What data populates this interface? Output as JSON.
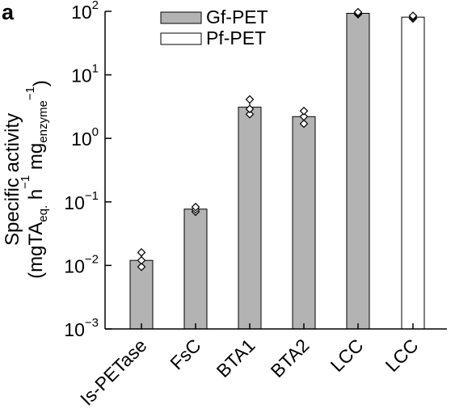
{
  "panel_label": "a",
  "chart_data": {
    "type": "bar",
    "yscale": "log",
    "ylim": [
      0.001,
      100
    ],
    "yticks": [
      {
        "base": "10",
        "exp": "2",
        "value": 100
      },
      {
        "base": "10",
        "exp": "1",
        "value": 10
      },
      {
        "base": "10",
        "exp": "0",
        "value": 1
      },
      {
        "base": "10",
        "exp": "−1",
        "value": 0.1
      },
      {
        "base": "10",
        "exp": "−2",
        "value": 0.01
      },
      {
        "base": "10",
        "exp": "−3",
        "value": 0.001
      }
    ],
    "ylabel": {
      "line1": "Specific activity",
      "line2_parts": [
        {
          "text": "(mgTA",
          "style": "normal"
        },
        {
          "text": "eq.",
          "style": "sub"
        },
        {
          "text": " h",
          "style": "normal"
        },
        {
          "text": "−1",
          "style": "sup"
        },
        {
          "text": " mg",
          "style": "normal"
        },
        {
          "text": "enzyme",
          "style": "sub"
        },
        {
          "text": "−1",
          "style": "sup"
        },
        {
          "text": ")",
          "style": "normal"
        }
      ]
    },
    "categories": [
      "Is-PETase",
      "FsC",
      "BTA1",
      "BTA2",
      "LCC",
      "LCC"
    ],
    "bars": [
      {
        "category": "Is-PETase",
        "series": "Gf-PET",
        "value": 0.012,
        "err_low": 0.009,
        "err_high": 0.016,
        "points": [
          0.0095,
          0.012,
          0.016
        ]
      },
      {
        "category": "FsC",
        "series": "Gf-PET",
        "value": 0.077,
        "err_low": 0.07,
        "err_high": 0.084,
        "points": [
          0.07,
          0.076,
          0.083
        ]
      },
      {
        "category": "BTA1",
        "series": "Gf-PET",
        "value": 3.1,
        "err_low": 2.3,
        "err_high": 4.0,
        "points": [
          2.4,
          2.9,
          4.1
        ]
      },
      {
        "category": "BTA2",
        "series": "Gf-PET",
        "value": 2.2,
        "err_low": 1.6,
        "err_high": 2.7,
        "points": [
          1.7,
          2.2,
          2.7
        ]
      },
      {
        "category": "LCC",
        "series": "Gf-PET",
        "value": 93,
        "err_low": 90,
        "err_high": 97,
        "points": [
          90,
          93,
          97
        ]
      },
      {
        "category": "LCC",
        "series": "Pf-PET",
        "value": 81,
        "err_low": 77,
        "err_high": 85,
        "points": [
          77,
          81,
          85
        ]
      }
    ],
    "series": [
      {
        "name": "Gf-PET",
        "color": "#b3b3b3"
      },
      {
        "name": "Pf-PET",
        "color": "#ffffff"
      }
    ],
    "legend_position": "top-left",
    "grid": false
  }
}
